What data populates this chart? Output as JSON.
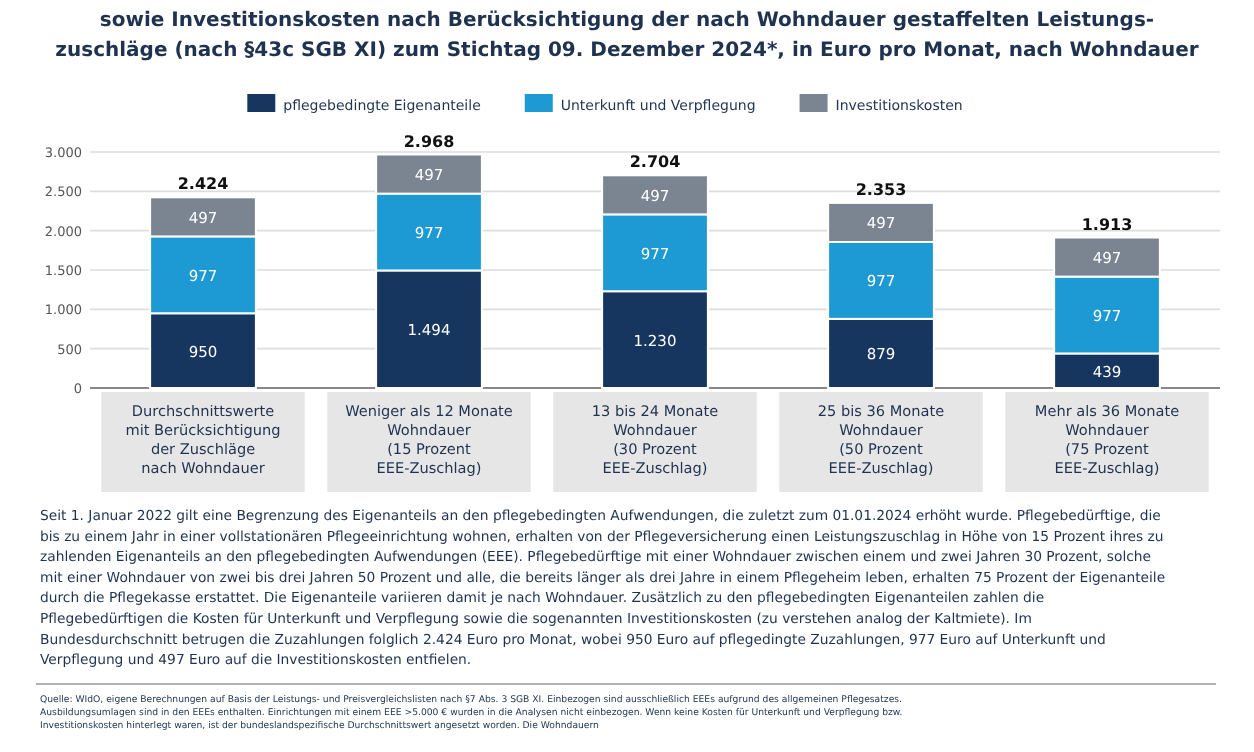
{
  "chart_data": {
    "type": "bar",
    "stacked": true,
    "title": "sowie Investitionskosten nach Berücksichtigung der nach Wohndauer gestaffelten Leistungs-\nzuschläge (nach §43c SGB XI) zum Stichtag 09. Dezember 2024*, in Euro pro Monat, nach Wohndauer",
    "categories": [
      "Durchschnittswerte\nmit Berücksichtigung\nder Zuschläge\nnach Wohndauer",
      "Weniger als 12 Monate\nWohndauer\n(15 Prozent\nEEE-Zuschlag)",
      "13 bis 24 Monate\nWohndauer\n(30 Prozent\nEEE-Zuschlag)",
      "25 bis 36 Monate\nWohndauer\n(50 Prozent\nEEE-Zuschlag)",
      "Mehr als 36 Monate\nWohndauer\n(75 Prozent\nEEE-Zuschlag)"
    ],
    "series": [
      {
        "name": "pflegebedingte Eigenanteile",
        "color": "#17365f",
        "values": [
          950,
          1494,
          1230,
          879,
          439
        ],
        "value_labels": [
          "950",
          "1.494",
          "1.230",
          "879",
          "439"
        ]
      },
      {
        "name": "Unterkunft und Verpflegung",
        "color": "#1d9ad3",
        "values": [
          977,
          977,
          977,
          977,
          977
        ],
        "value_labels": [
          "977",
          "977",
          "977",
          "977",
          "977"
        ]
      },
      {
        "name": "Investitionskosten",
        "color": "#7b8591",
        "values": [
          497,
          497,
          497,
          497,
          497
        ],
        "value_labels": [
          "497",
          "497",
          "497",
          "497",
          "497"
        ]
      }
    ],
    "totals": [
      "2.424",
      "2.968",
      "2.704",
      "2.353",
      "1.913"
    ],
    "ylim": [
      0,
      3000
    ],
    "yticks": [
      0,
      500,
      {
        "value": 1000,
        "label": "1.000"
      },
      {
        "value": 1500,
        "label": "1.500"
      },
      {
        "value": 2000,
        "label": "2.000"
      },
      {
        "value": 2500,
        "label": "2.500"
      },
      {
        "value": 3000,
        "label": "3.000"
      }
    ],
    "grid": "y",
    "legend": "top",
    "annotations": [
      "Seit 1. Januar 2022 gilt eine Begrenzung des Eigenanteils an den pflegebedingten Aufwendungen, die zuletzt zum 01.01.2024 erhöht wurde. Pflegebedürftige, die bis zu einem Jahr in einer vollstationären Pflegeeinrichtung wohnen, erhalten von der Pflegeversicherung einen Leistungszuschlag in Höhe von 15 Prozent ihres zu zahlenden Eigenanteils an den pflegebedingten Aufwendungen (EEE). Pflegebedürftige mit einer Wohndauer zwischen einem und zwei Jahren 30 Prozent, solche mit einer Wohndauer von zwei bis drei Jahren 50 Prozent und alle, die bereits länger als drei Jahre in einem Pflegeheim leben, erhalten 75 Prozent der Eigenanteile durch die Pflegekasse erstattet. Die Eigenanteile variieren damit je nach Wohndauer. Zusätzlich zu den pflegebedingten Eigenanteilen zahlen die Pflegebedürftigen die Kosten für Unterkunft und Verpflegung sowie die sogenannten Investitionskosten (zu verstehen analog der Kaltmiete). Im Bundesdurchschnitt betrugen die Zuzahlungen folglich 2.424 Euro pro Monat, wobei 950 Euro auf pflegedingte Zuzahlungen, 977 Euro auf Unterkunft und Verpflegung und 497 Euro auf die Investitionskosten entfielen.",
      "Quelle: WIdO, eigene Berechnungen auf Basis der Leistungs- und Preisvergleichslisten nach §7 Abs. 3 SGB XI. Einbezogen sind ausschließlich EEEs aufgrund des allgemeinen Pflegesatzes. Ausbildungsumlagen sind in den EEEs enthalten. Einrichtungen mit einem EEE >5.000 € wurden in die Analysen nicht einbezogen. Wenn keine Kosten für Unterkunft und Verpflegung bzw. Investitionskosten hinterlegt waren, ist der bundeslandspezifische Durchschnittswert angesetzt worden. Die Wohndauern"
    ]
  }
}
